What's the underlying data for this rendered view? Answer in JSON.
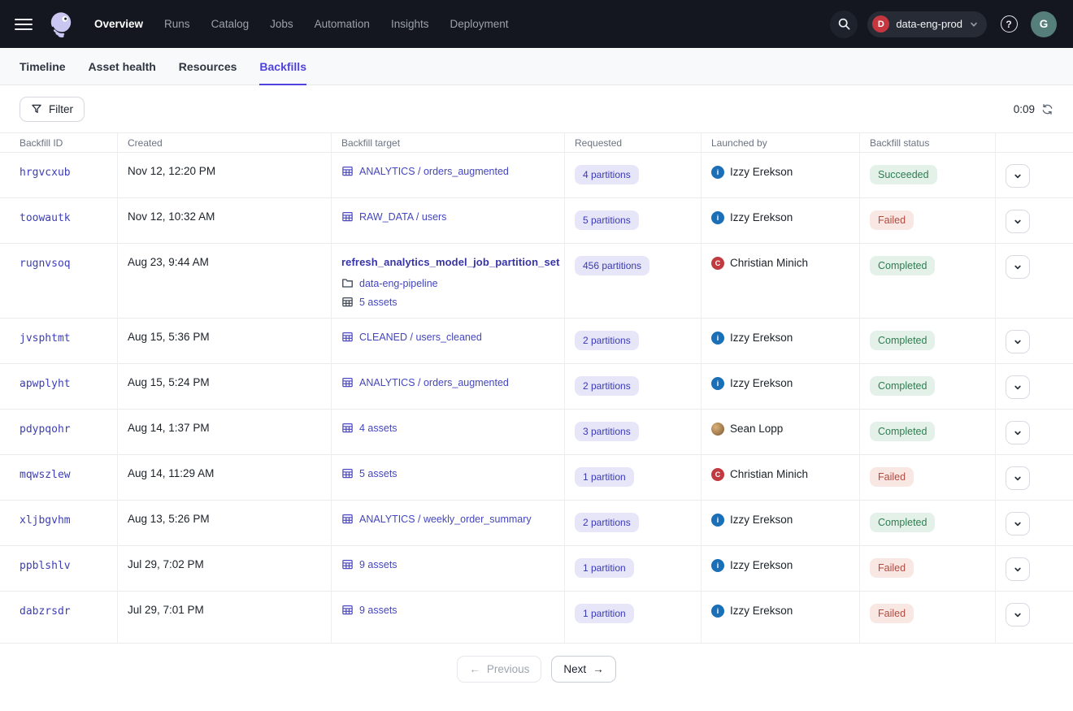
{
  "navbar": {
    "nav_items": [
      {
        "label": "Overview",
        "active": true
      },
      {
        "label": "Runs",
        "active": false
      },
      {
        "label": "Catalog",
        "active": false
      },
      {
        "label": "Jobs",
        "active": false
      },
      {
        "label": "Automation",
        "active": false
      },
      {
        "label": "Insights",
        "active": false
      },
      {
        "label": "Deployment",
        "active": false
      }
    ],
    "deployment_switcher": {
      "initial": "D",
      "name": "data-eng-prod"
    },
    "help_label": "?",
    "user_initial": "G"
  },
  "tabs": [
    {
      "label": "Timeline",
      "active": false
    },
    {
      "label": "Asset health",
      "active": false
    },
    {
      "label": "Resources",
      "active": false
    },
    {
      "label": "Backfills",
      "active": true
    }
  ],
  "toolbar": {
    "filter_label": "Filter",
    "refresh_countdown": "0:09"
  },
  "table": {
    "columns": [
      "Backfill ID",
      "Created",
      "Backfill target",
      "Requested",
      "Launched by",
      "Backfill status",
      ""
    ],
    "rows": [
      {
        "id": "hrgvcxub",
        "created": "Nov 12, 12:20 PM",
        "target": {
          "type": "asset",
          "label": "ANALYTICS / orders_augmented"
        },
        "requested": "4 partitions",
        "launched_by": {
          "name": "Izzy Erekson",
          "avatar": {
            "type": "initial",
            "letter": "i",
            "color": "#1A6FB7"
          }
        },
        "status": {
          "label": "Succeeded",
          "kind": "success"
        }
      },
      {
        "id": "toowautk",
        "created": "Nov 12, 10:32 AM",
        "target": {
          "type": "asset",
          "label": "RAW_DATA / users"
        },
        "requested": "5 partitions",
        "launched_by": {
          "name": "Izzy Erekson",
          "avatar": {
            "type": "initial",
            "letter": "i",
            "color": "#1A6FB7"
          }
        },
        "status": {
          "label": "Failed",
          "kind": "failure"
        }
      },
      {
        "id": "rugnvsoq",
        "created": "Aug 23, 9:44 AM",
        "target": {
          "type": "job",
          "label": "refresh_analytics_model_job_partition_set",
          "sublines": [
            {
              "icon": "folder",
              "label": "data-eng-pipeline"
            },
            {
              "icon": "asset-grid",
              "label": "5 assets"
            }
          ]
        },
        "requested": "456 partitions",
        "launched_by": {
          "name": "Christian Minich",
          "avatar": {
            "type": "initial",
            "letter": "C",
            "color": "#C13A40"
          }
        },
        "status": {
          "label": "Completed",
          "kind": "success"
        }
      },
      {
        "id": "jvsphtmt",
        "created": "Aug 15, 5:36 PM",
        "target": {
          "type": "asset",
          "label": "CLEANED / users_cleaned"
        },
        "requested": "2 partitions",
        "launched_by": {
          "name": "Izzy Erekson",
          "avatar": {
            "type": "initial",
            "letter": "i",
            "color": "#1A6FB7"
          }
        },
        "status": {
          "label": "Completed",
          "kind": "success"
        }
      },
      {
        "id": "apwplyht",
        "created": "Aug 15, 5:24 PM",
        "target": {
          "type": "asset",
          "label": "ANALYTICS / orders_augmented"
        },
        "requested": "2 partitions",
        "launched_by": {
          "name": "Izzy Erekson",
          "avatar": {
            "type": "initial",
            "letter": "i",
            "color": "#1A6FB7"
          }
        },
        "status": {
          "label": "Completed",
          "kind": "success"
        }
      },
      {
        "id": "pdypqohr",
        "created": "Aug 14, 1:37 PM",
        "target": {
          "type": "asset",
          "label": "4 assets"
        },
        "requested": "3 partitions",
        "launched_by": {
          "name": "Sean Lopp",
          "avatar": {
            "type": "photo"
          }
        },
        "status": {
          "label": "Completed",
          "kind": "success"
        }
      },
      {
        "id": "mqwszlew",
        "created": "Aug 14, 11:29 AM",
        "target": {
          "type": "asset",
          "label": "5 assets"
        },
        "requested": "1 partition",
        "launched_by": {
          "name": "Christian Minich",
          "avatar": {
            "type": "initial",
            "letter": "C",
            "color": "#C13A40"
          }
        },
        "status": {
          "label": "Failed",
          "kind": "failure"
        }
      },
      {
        "id": "xljbgvhm",
        "created": "Aug 13, 5:26 PM",
        "target": {
          "type": "asset",
          "label": "ANALYTICS / weekly_order_summary"
        },
        "requested": "2 partitions",
        "launched_by": {
          "name": "Izzy Erekson",
          "avatar": {
            "type": "initial",
            "letter": "i",
            "color": "#1A6FB7"
          }
        },
        "status": {
          "label": "Completed",
          "kind": "success"
        }
      },
      {
        "id": "ppblshlv",
        "created": "Jul 29, 7:02 PM",
        "target": {
          "type": "asset",
          "label": "9 assets"
        },
        "requested": "1 partition",
        "launched_by": {
          "name": "Izzy Erekson",
          "avatar": {
            "type": "initial",
            "letter": "i",
            "color": "#1A6FB7"
          }
        },
        "status": {
          "label": "Failed",
          "kind": "failure"
        }
      },
      {
        "id": "dabzrsdr",
        "created": "Jul 29, 7:01 PM",
        "target": {
          "type": "asset",
          "label": "9 assets"
        },
        "requested": "1 partition",
        "launched_by": {
          "name": "Izzy Erekson",
          "avatar": {
            "type": "initial",
            "letter": "i",
            "color": "#1A6FB7"
          }
        },
        "status": {
          "label": "Failed",
          "kind": "failure"
        }
      }
    ]
  },
  "pagination": {
    "previous_label": "Previous",
    "next_label": "Next",
    "arrow_left": "←",
    "arrow_right": "→"
  },
  "icons": {
    "menu": "hamburger-icon",
    "logo": "dagster-logo",
    "search": "search-icon",
    "help": "question-icon",
    "deployment_caret": "chevron-down-icon",
    "filter": "funnel-icon",
    "refresh": "refresh-icon",
    "asset_target": "asset-table-icon",
    "job_folder": "folder-icon",
    "row_expand": "chevron-down-icon"
  },
  "colors": {
    "accent": "#4F43DD",
    "navbar_bg": "#14171F",
    "link": "#4446BF",
    "id_link": "#3C3EB6",
    "partition_badge_bg": "#E7E6F9",
    "partition_badge_text": "#3A3AB2",
    "success_bg": "#E4F1E9",
    "success_text": "#2E7D51",
    "failure_bg": "#F9E7E3",
    "failure_text": "#B04B40",
    "deployment_dot": "#C5363F",
    "user_avatar_bg": "#567E7B",
    "izzy_avatar": "#1A6FB7",
    "christian_avatar": "#C13A40"
  }
}
